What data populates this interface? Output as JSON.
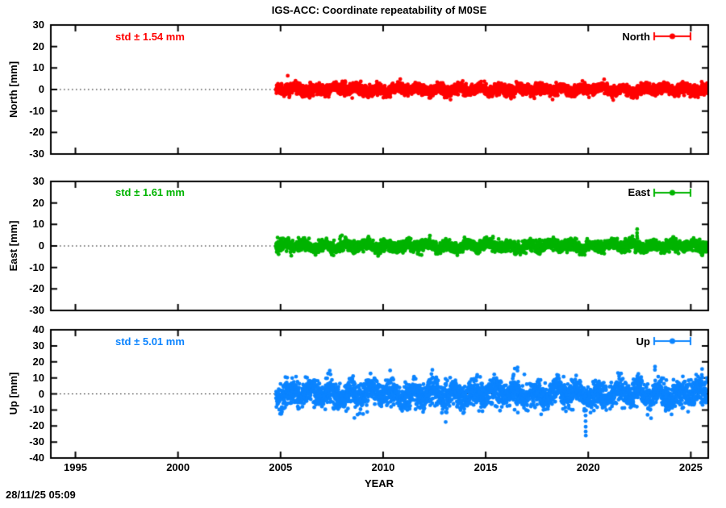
{
  "title": "IGS-ACC: Coordinate repeatability of M0SE",
  "timestamp": "28/11/25 05:09",
  "chart_data": {
    "type": "scatter",
    "title": "IGS-ACC: Coordinate repeatability of M0SE",
    "xlabel": "YEAR",
    "x_ticks": [
      1995,
      2000,
      2005,
      2010,
      2015,
      2020,
      2025
    ],
    "xlim": [
      1993.8,
      2025.85
    ],
    "grid": "zero-line-dotted-only",
    "legend_position": "top-right-inside",
    "data_span": {
      "start": 2004.78,
      "end": 2025.82
    },
    "panels": [
      {
        "name": "North",
        "ylabel": "North [mm]",
        "std_label": "std ± 1.54 mm",
        "std_mm": 1.54,
        "legend_label": "North",
        "color": "#ff0000",
        "ylim": [
          -30,
          30
        ],
        "ytick_step": 10,
        "zero_line": true,
        "series": {
          "seed": 11,
          "points_per_year": 160,
          "sigma": 1.25,
          "seasonal_amplitude": 0.85,
          "seasonal_phase": 0.55,
          "outliers": [
            {
              "t": 2005.35,
              "v": 6.4
            }
          ]
        }
      },
      {
        "name": "East",
        "ylabel": "East [mm]",
        "std_label": "std ± 1.61 mm",
        "std_mm": 1.61,
        "legend_label": "East",
        "color": "#00b400",
        "ylim": [
          -30,
          30
        ],
        "ytick_step": 10,
        "zero_line": true,
        "series": {
          "seed": 22,
          "points_per_year": 160,
          "sigma": 1.3,
          "seasonal_amplitude": 0.95,
          "seasonal_phase": 0.1,
          "outliers": [
            {
              "t": 2022.38,
              "v": 4.5
            },
            {
              "t": 2022.38,
              "v": 6.0
            },
            {
              "t": 2022.385,
              "v": 7.8
            }
          ]
        }
      },
      {
        "name": "Up",
        "ylabel": "Up [mm]",
        "std_label": "std ± 5.01 mm",
        "std_mm": 5.01,
        "legend_label": "Up",
        "color": "#0b84ff",
        "ylim": [
          -40,
          40
        ],
        "ytick_step": 10,
        "zero_line": true,
        "series": {
          "seed": 33,
          "points_per_year": 160,
          "sigma": 4.0,
          "seasonal_amplitude": 2.6,
          "seasonal_phase": 0.8,
          "outliers": [
            {
              "t": 2019.87,
              "v": -13.5
            },
            {
              "t": 2019.87,
              "v": -17.0
            },
            {
              "t": 2019.875,
              "v": -20.5
            },
            {
              "t": 2019.875,
              "v": -23.5
            },
            {
              "t": 2019.88,
              "v": -26.0
            },
            {
              "t": 2016.55,
              "v": 14.5
            },
            {
              "t": 2016.555,
              "v": 16.5
            },
            {
              "t": 2023.25,
              "v": 15.0
            },
            {
              "t": 2023.255,
              "v": 17.0
            },
            {
              "t": 2012.4,
              "v": 15.0
            },
            {
              "t": 2025.55,
              "v": 15.5
            },
            {
              "t": 2008.6,
              "v": -15.0
            },
            {
              "t": 2013.05,
              "v": -17.5
            }
          ]
        }
      }
    ]
  }
}
